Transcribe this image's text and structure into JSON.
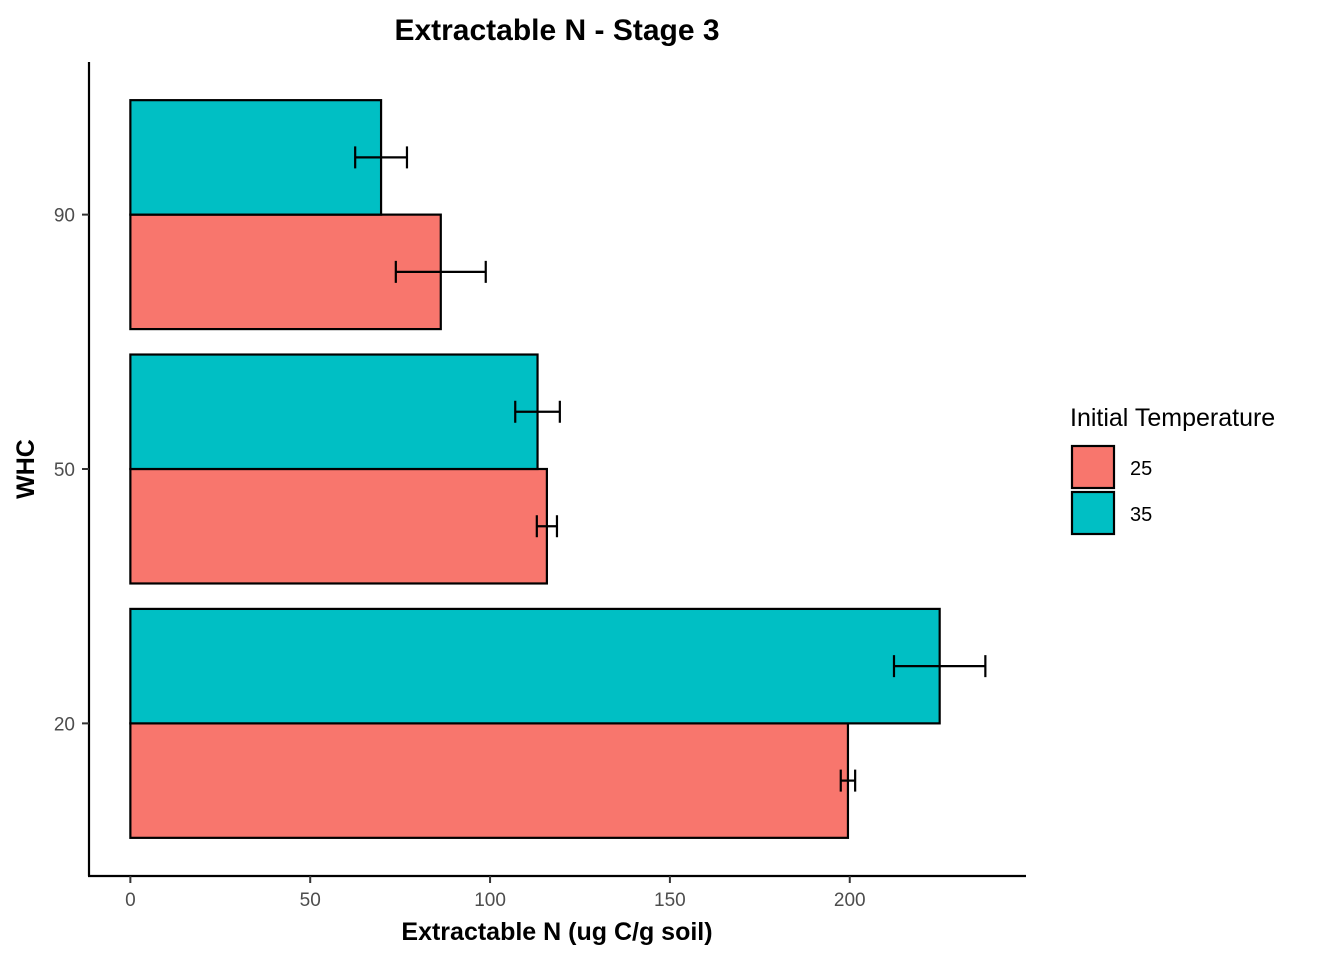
{
  "chart_data": {
    "type": "bar",
    "orientation": "horizontal",
    "title": "Extractable N - Stage 3",
    "xlabel": "Extractable N (ug C/g soil)",
    "ylabel": "WHC",
    "categories": [
      "20",
      "50",
      "90"
    ],
    "series": [
      {
        "name": "25",
        "color": "#F8766D",
        "values": [
          199.5,
          115.8,
          86.3
        ],
        "errors": [
          2.0,
          2.8,
          12.5
        ]
      },
      {
        "name": "35",
        "color": "#00BFC4",
        "values": [
          225.0,
          113.2,
          69.7
        ],
        "errors": [
          12.7,
          6.2,
          7.2
        ]
      }
    ],
    "xlim": [
      -11.5,
      249
    ],
    "xticks": [
      0,
      50,
      100,
      150,
      200
    ],
    "legend": {
      "title": "Initial Temperature",
      "position": "right"
    },
    "grid": false
  }
}
